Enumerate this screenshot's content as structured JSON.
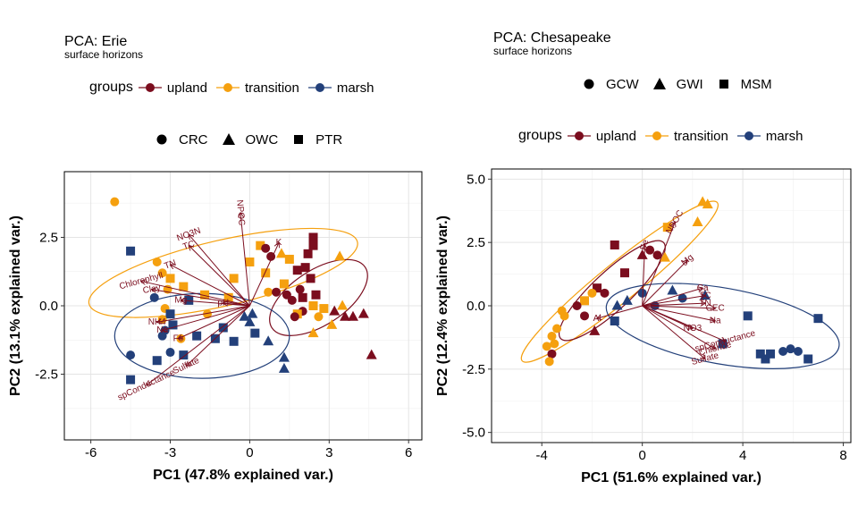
{
  "chart_data": [
    {
      "id": "erie",
      "type": "scatter",
      "title": "PCA: Erie",
      "subtitle": "surface horizons",
      "xlabel": "PC1 (47.8% explained var.)",
      "ylabel": "PC2 (13.1% explained var.)",
      "xlim": [
        -7,
        6.5
      ],
      "ylim": [
        -4.9,
        4.9
      ],
      "xticks": [
        -6,
        -3,
        0,
        3,
        6
      ],
      "xtick_labels": [
        "-6",
        "-3",
        "0",
        "3",
        "6"
      ],
      "yticks": [
        -2.5,
        0,
        2.5
      ],
      "ytick_labels": [
        "-2.5",
        "0.0",
        "2.5"
      ],
      "grid": true,
      "legend_groups": {
        "title": "groups",
        "items": [
          "upland",
          "transition",
          "marsh"
        ]
      },
      "legend_shapes": {
        "items": [
          "CRC",
          "OWC",
          "PTR"
        ]
      },
      "colors": {
        "upland": "#7b0d1e",
        "transition": "#f5a00f",
        "marsh": "#23407a"
      },
      "shapes": {
        "CRC": "circle",
        "OWC": "triangle",
        "PTR": "square"
      },
      "points": [
        {
          "x": -5.1,
          "y": 3.8,
          "g": "transition",
          "s": "CRC"
        },
        {
          "x": -4.5,
          "y": 2.0,
          "g": "marsh",
          "s": "PTR"
        },
        {
          "x": -3.5,
          "y": 1.6,
          "g": "transition",
          "s": "CRC"
        },
        {
          "x": -3.3,
          "y": 1.2,
          "g": "transition",
          "s": "CRC"
        },
        {
          "x": -3.0,
          "y": 1.0,
          "g": "transition",
          "s": "PTR"
        },
        {
          "x": -3.1,
          "y": 0.6,
          "g": "transition",
          "s": "CRC"
        },
        {
          "x": -2.5,
          "y": 0.7,
          "g": "transition",
          "s": "PTR"
        },
        {
          "x": -3.6,
          "y": 0.3,
          "g": "marsh",
          "s": "CRC"
        },
        {
          "x": -3.2,
          "y": -0.1,
          "g": "transition",
          "s": "CRC"
        },
        {
          "x": -2.3,
          "y": 0.2,
          "g": "marsh",
          "s": "PTR"
        },
        {
          "x": -3.0,
          "y": -0.3,
          "g": "marsh",
          "s": "PTR"
        },
        {
          "x": -3.3,
          "y": -0.5,
          "g": "transition",
          "s": "CRC"
        },
        {
          "x": -3.2,
          "y": -0.9,
          "g": "marsh",
          "s": "CRC"
        },
        {
          "x": -2.9,
          "y": -0.7,
          "g": "marsh",
          "s": "PTR"
        },
        {
          "x": -3.3,
          "y": -1.1,
          "g": "marsh",
          "s": "CRC"
        },
        {
          "x": -2.6,
          "y": -1.2,
          "g": "transition",
          "s": "CRC"
        },
        {
          "x": -1.6,
          "y": -0.3,
          "g": "transition",
          "s": "CRC"
        },
        {
          "x": -1.0,
          "y": -0.8,
          "g": "marsh",
          "s": "PTR"
        },
        {
          "x": -1.3,
          "y": -1.2,
          "g": "marsh",
          "s": "PTR"
        },
        {
          "x": -0.6,
          "y": -1.3,
          "g": "marsh",
          "s": "PTR"
        },
        {
          "x": -2.0,
          "y": -1.1,
          "g": "marsh",
          "s": "PTR"
        },
        {
          "x": -2.5,
          "y": -1.8,
          "g": "marsh",
          "s": "PTR"
        },
        {
          "x": -3.0,
          "y": -1.7,
          "g": "marsh",
          "s": "CRC"
        },
        {
          "x": -3.5,
          "y": -2.0,
          "g": "marsh",
          "s": "PTR"
        },
        {
          "x": -4.5,
          "y": -1.8,
          "g": "marsh",
          "s": "CRC"
        },
        {
          "x": -4.5,
          "y": -2.7,
          "g": "marsh",
          "s": "PTR"
        },
        {
          "x": -1.7,
          "y": 0.4,
          "g": "transition",
          "s": "PTR"
        },
        {
          "x": -0.8,
          "y": 0.3,
          "g": "transition",
          "s": "PTR"
        },
        {
          "x": -0.2,
          "y": -0.4,
          "g": "marsh",
          "s": "OWC"
        },
        {
          "x": 0.2,
          "y": -1.0,
          "g": "marsh",
          "s": "PTR"
        },
        {
          "x": 0.7,
          "y": -1.3,
          "g": "marsh",
          "s": "OWC"
        },
        {
          "x": 1.3,
          "y": -1.9,
          "g": "marsh",
          "s": "OWC"
        },
        {
          "x": 1.3,
          "y": -2.3,
          "g": "marsh",
          "s": "OWC"
        },
        {
          "x": -0.6,
          "y": 1.0,
          "g": "transition",
          "s": "PTR"
        },
        {
          "x": 0.0,
          "y": 1.6,
          "g": "transition",
          "s": "PTR"
        },
        {
          "x": 0.4,
          "y": 2.2,
          "g": "transition",
          "s": "PTR"
        },
        {
          "x": 0.6,
          "y": 1.2,
          "g": "transition",
          "s": "PTR"
        },
        {
          "x": 0.7,
          "y": 0.5,
          "g": "transition",
          "s": "CRC"
        },
        {
          "x": 1.3,
          "y": 0.8,
          "g": "transition",
          "s": "PTR"
        },
        {
          "x": 1.5,
          "y": 1.7,
          "g": "transition",
          "s": "PTR"
        },
        {
          "x": 1.2,
          "y": 1.9,
          "g": "transition",
          "s": "OWC"
        },
        {
          "x": 0.6,
          "y": 2.1,
          "g": "upland",
          "s": "CRC"
        },
        {
          "x": 0.8,
          "y": 1.8,
          "g": "upland",
          "s": "CRC"
        },
        {
          "x": 1.8,
          "y": 1.3,
          "g": "upland",
          "s": "PTR"
        },
        {
          "x": 2.2,
          "y": 1.9,
          "g": "upland",
          "s": "PTR"
        },
        {
          "x": 2.4,
          "y": 2.5,
          "g": "upland",
          "s": "PTR"
        },
        {
          "x": 2.4,
          "y": 2.2,
          "g": "upland",
          "s": "PTR"
        },
        {
          "x": 2.1,
          "y": 1.4,
          "g": "upland",
          "s": "PTR"
        },
        {
          "x": 2.3,
          "y": 1.0,
          "g": "upland",
          "s": "PTR"
        },
        {
          "x": 1.9,
          "y": 0.6,
          "g": "upland",
          "s": "CRC"
        },
        {
          "x": 1.4,
          "y": 0.4,
          "g": "upland",
          "s": "CRC"
        },
        {
          "x": 1.0,
          "y": 0.5,
          "g": "upland",
          "s": "CRC"
        },
        {
          "x": 1.6,
          "y": 0.2,
          "g": "upland",
          "s": "CRC"
        },
        {
          "x": 2.0,
          "y": 0.3,
          "g": "upland",
          "s": "PTR"
        },
        {
          "x": 2.5,
          "y": 0.4,
          "g": "upland",
          "s": "PTR"
        },
        {
          "x": 2.4,
          "y": 0.0,
          "g": "transition",
          "s": "PTR"
        },
        {
          "x": 2.0,
          "y": -0.2,
          "g": "upland",
          "s": "CRC"
        },
        {
          "x": 1.8,
          "y": -0.3,
          "g": "transition",
          "s": "PTR"
        },
        {
          "x": 1.7,
          "y": -0.4,
          "g": "upland",
          "s": "CRC"
        },
        {
          "x": 2.8,
          "y": -0.1,
          "g": "transition",
          "s": "PTR"
        },
        {
          "x": 2.6,
          "y": -0.4,
          "g": "transition",
          "s": "CRC"
        },
        {
          "x": 3.2,
          "y": -0.2,
          "g": "upland",
          "s": "OWC"
        },
        {
          "x": 3.1,
          "y": -0.7,
          "g": "transition",
          "s": "OWC"
        },
        {
          "x": 2.4,
          "y": -1.0,
          "g": "transition",
          "s": "OWC"
        },
        {
          "x": 3.5,
          "y": 0.0,
          "g": "transition",
          "s": "OWC"
        },
        {
          "x": 3.6,
          "y": -0.4,
          "g": "upland",
          "s": "OWC"
        },
        {
          "x": 3.9,
          "y": -0.4,
          "g": "upland",
          "s": "OWC"
        },
        {
          "x": 4.3,
          "y": -0.3,
          "g": "upland",
          "s": "OWC"
        },
        {
          "x": 3.4,
          "y": 1.8,
          "g": "transition",
          "s": "OWC"
        },
        {
          "x": 4.6,
          "y": -1.8,
          "g": "upland",
          "s": "OWC"
        },
        {
          "x": 0.0,
          "y": -0.6,
          "g": "marsh",
          "s": "OWC"
        },
        {
          "x": 0.1,
          "y": -0.3,
          "g": "marsh",
          "s": "OWC"
        }
      ],
      "ellipses": [
        {
          "group": "transition",
          "cx": -1.0,
          "cy": 1.2,
          "rx": 5.2,
          "ry": 1.2,
          "angle": -13
        },
        {
          "group": "upland",
          "cx": 2.6,
          "cy": 0.3,
          "rx": 2.1,
          "ry": 1.0,
          "angle": -33
        },
        {
          "group": "marsh",
          "cx": -1.8,
          "cy": -1.1,
          "rx": 3.3,
          "ry": 1.55,
          "angle": 0
        }
      ],
      "loadings": [
        {
          "label": "NPOC",
          "x": -0.35,
          "y": 3.4,
          "rot": 85
        },
        {
          "label": "K",
          "x": 1.1,
          "y": 2.3,
          "rot": 0
        },
        {
          "label": "NO3N",
          "x": -2.3,
          "y": 2.6,
          "rot": -20
        },
        {
          "label": "TC",
          "x": -2.3,
          "y": 2.2,
          "rot": -20
        },
        {
          "label": "TN",
          "x": -3.0,
          "y": 1.5,
          "rot": -20
        },
        {
          "label": "Chlorophyll",
          "x": -4.1,
          "y": 0.9,
          "rot": -15
        },
        {
          "label": "Clay",
          "x": -3.7,
          "y": 0.6,
          "rot": -10
        },
        {
          "label": "Mg",
          "x": -2.6,
          "y": 0.2,
          "rot": 0
        },
        {
          "label": "pH",
          "x": -1.0,
          "y": 0.1,
          "rot": 0
        },
        {
          "label": "Na",
          "x": -3.3,
          "y": -0.9,
          "rot": 0
        },
        {
          "label": "NH4",
          "x": -3.5,
          "y": -0.6,
          "rot": 0
        },
        {
          "label": "Fe",
          "x": -2.7,
          "y": -1.2,
          "rot": 0
        },
        {
          "label": "Sulfate",
          "x": -2.4,
          "y": -2.2,
          "rot": -25
        },
        {
          "label": "spConductance",
          "x": -3.9,
          "y": -2.9,
          "rot": -25
        }
      ]
    },
    {
      "id": "chesapeake",
      "type": "scatter",
      "title": "PCA: Chesapeake",
      "subtitle": "surface horizons",
      "xlabel": "PC1 (51.6% explained var.)",
      "ylabel": "PC2 (12.4% explained var.)",
      "xlim": [
        -6,
        8.3
      ],
      "ylim": [
        -5.4,
        5.4
      ],
      "xticks": [
        -4,
        0,
        4,
        8
      ],
      "xtick_labels": [
        "-4",
        "0",
        "4",
        "8"
      ],
      "yticks": [
        -5,
        -2.5,
        0,
        2.5,
        5
      ],
      "ytick_labels": [
        "-5.0",
        "-2.5",
        "0.0",
        "2.5",
        "5.0"
      ],
      "grid": true,
      "legend_groups": {
        "title": "groups",
        "items": [
          "upland",
          "transition",
          "marsh"
        ]
      },
      "legend_shapes": {
        "items": [
          "GCW",
          "GWI",
          "MSM"
        ]
      },
      "colors": {
        "upland": "#7b0d1e",
        "transition": "#f5a00f",
        "marsh": "#23407a"
      },
      "shapes": {
        "GCW": "circle",
        "GWI": "triangle",
        "MSM": "square"
      },
      "points": [
        {
          "x": 2.4,
          "y": 4.1,
          "g": "transition",
          "s": "GWI"
        },
        {
          "x": 2.6,
          "y": 4.0,
          "g": "transition",
          "s": "GWI"
        },
        {
          "x": 1.0,
          "y": 3.1,
          "g": "transition",
          "s": "MSM"
        },
        {
          "x": 2.2,
          "y": 3.3,
          "g": "transition",
          "s": "GWI"
        },
        {
          "x": 0.0,
          "y": 2.0,
          "g": "upland",
          "s": "GWI"
        },
        {
          "x": 0.9,
          "y": 1.9,
          "g": "transition",
          "s": "GWI"
        },
        {
          "x": 0.6,
          "y": 2.0,
          "g": "upland",
          "s": "GCW"
        },
        {
          "x": 0.3,
          "y": 2.2,
          "g": "upland",
          "s": "GCW"
        },
        {
          "x": -1.1,
          "y": 2.4,
          "g": "upland",
          "s": "MSM"
        },
        {
          "x": -0.7,
          "y": 1.3,
          "g": "upland",
          "s": "MSM"
        },
        {
          "x": -1.8,
          "y": 0.7,
          "g": "upland",
          "s": "MSM"
        },
        {
          "x": -2.0,
          "y": 0.5,
          "g": "transition",
          "s": "GCW"
        },
        {
          "x": -1.5,
          "y": 0.5,
          "g": "upland",
          "s": "GCW"
        },
        {
          "x": -2.3,
          "y": 0.2,
          "g": "transition",
          "s": "MSM"
        },
        {
          "x": -2.6,
          "y": 0.0,
          "g": "upland",
          "s": "GCW"
        },
        {
          "x": -1.0,
          "y": 0.0,
          "g": "marsh",
          "s": "GWI"
        },
        {
          "x": -0.6,
          "y": 0.2,
          "g": "marsh",
          "s": "GWI"
        },
        {
          "x": 0.0,
          "y": 0.5,
          "g": "marsh",
          "s": "GCW"
        },
        {
          "x": 0.5,
          "y": 0.0,
          "g": "marsh",
          "s": "GCW"
        },
        {
          "x": 1.2,
          "y": 0.6,
          "g": "marsh",
          "s": "GWI"
        },
        {
          "x": 1.6,
          "y": 0.3,
          "g": "marsh",
          "s": "GCW"
        },
        {
          "x": 2.5,
          "y": 0.4,
          "g": "marsh",
          "s": "GWI"
        },
        {
          "x": -2.3,
          "y": -0.4,
          "g": "upland",
          "s": "GCW"
        },
        {
          "x": -3.1,
          "y": -0.4,
          "g": "transition",
          "s": "GCW"
        },
        {
          "x": -3.2,
          "y": -0.2,
          "g": "transition",
          "s": "GCW"
        },
        {
          "x": -3.4,
          "y": -0.9,
          "g": "transition",
          "s": "GCW"
        },
        {
          "x": -3.6,
          "y": -1.2,
          "g": "transition",
          "s": "GCW"
        },
        {
          "x": -3.5,
          "y": -1.5,
          "g": "transition",
          "s": "GCW"
        },
        {
          "x": -3.8,
          "y": -1.6,
          "g": "transition",
          "s": "GCW"
        },
        {
          "x": -3.6,
          "y": -1.9,
          "g": "upland",
          "s": "GCW"
        },
        {
          "x": -3.7,
          "y": -2.2,
          "g": "transition",
          "s": "GCW"
        },
        {
          "x": -1.9,
          "y": -1.0,
          "g": "upland",
          "s": "GWI"
        },
        {
          "x": -1.1,
          "y": -0.6,
          "g": "marsh",
          "s": "MSM"
        },
        {
          "x": 4.2,
          "y": -0.4,
          "g": "marsh",
          "s": "MSM"
        },
        {
          "x": 7.0,
          "y": -0.5,
          "g": "marsh",
          "s": "MSM"
        },
        {
          "x": 3.2,
          "y": -1.5,
          "g": "marsh",
          "s": "MSM"
        },
        {
          "x": 4.7,
          "y": -1.9,
          "g": "marsh",
          "s": "MSM"
        },
        {
          "x": 5.1,
          "y": -1.9,
          "g": "marsh",
          "s": "MSM"
        },
        {
          "x": 4.9,
          "y": -2.1,
          "g": "marsh",
          "s": "MSM"
        },
        {
          "x": 5.6,
          "y": -1.8,
          "g": "marsh",
          "s": "GCW"
        },
        {
          "x": 6.2,
          "y": -1.8,
          "g": "marsh",
          "s": "GCW"
        },
        {
          "x": 6.6,
          "y": -2.1,
          "g": "marsh",
          "s": "MSM"
        },
        {
          "x": 5.9,
          "y": -1.7,
          "g": "marsh",
          "s": "GCW"
        }
      ],
      "ellipses": [
        {
          "group": "transition",
          "cx": -0.9,
          "cy": 0.95,
          "rx": 5.0,
          "ry": 0.75,
          "angle": -39
        },
        {
          "group": "upland",
          "cx": -1.2,
          "cy": 0.6,
          "rx": 2.8,
          "ry": 0.75,
          "angle": -43
        },
        {
          "group": "marsh",
          "cx": 3.2,
          "cy": -0.8,
          "rx": 4.7,
          "ry": 1.5,
          "angle": 10
        }
      ],
      "loadings": [
        {
          "label": "Fe",
          "x": 0.1,
          "y": 2.4,
          "rot": -75
        },
        {
          "label": "NPOC",
          "x": 1.3,
          "y": 3.3,
          "rot": -60
        },
        {
          "label": "Mg",
          "x": 1.8,
          "y": 1.8,
          "rot": -40
        },
        {
          "label": "Ca",
          "x": 2.4,
          "y": 0.7,
          "rot": 0
        },
        {
          "label": "TC",
          "x": 2.5,
          "y": 0.4,
          "rot": 0
        },
        {
          "label": "TN",
          "x": 2.5,
          "y": 0.1,
          "rot": 0
        },
        {
          "label": "CEC",
          "x": 2.9,
          "y": -0.1,
          "rot": 0
        },
        {
          "label": "Na",
          "x": 2.9,
          "y": -0.6,
          "rot": 0
        },
        {
          "label": "NO3",
          "x": 2.0,
          "y": -0.9,
          "rot": 0
        },
        {
          "label": "spConductance",
          "x": 3.3,
          "y": -1.4,
          "rot": -15
        },
        {
          "label": "Chloride",
          "x": 2.9,
          "y": -1.7,
          "rot": -15
        },
        {
          "label": "Sulfate",
          "x": 2.5,
          "y": -2.1,
          "rot": -15
        },
        {
          "label": "Al",
          "x": -1.8,
          "y": -0.5,
          "rot": 0
        }
      ]
    }
  ]
}
